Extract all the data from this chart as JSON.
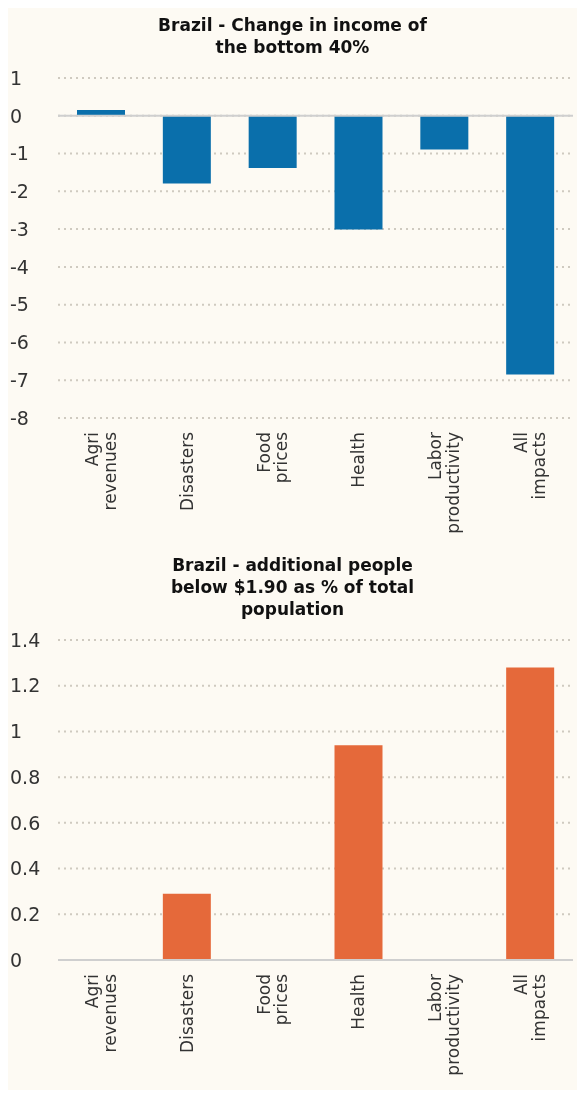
{
  "chart_data": [
    {
      "type": "bar",
      "title": "Brazil - Change in income of the bottom 40%",
      "categories": [
        "Agri revenues",
        "Disasters",
        "Food prices",
        "Health",
        "Labor productivity",
        "All impacts"
      ],
      "values": [
        0.15,
        -1.79,
        -1.38,
        -3.01,
        -0.89,
        -6.85
      ],
      "color": "#0a6fab",
      "ylim": [
        -8,
        1
      ],
      "yticks": [
        -8,
        -7,
        -6,
        -5,
        -4,
        -3,
        -2,
        -1,
        0,
        1
      ],
      "grid": "y"
    },
    {
      "type": "bar",
      "title": "Brazil - additional people below $1.90 as % of total population",
      "categories": [
        "Agri revenues",
        "Disasters",
        "Food prices",
        "Health",
        "Labor productivity",
        "All impacts"
      ],
      "values": [
        0,
        0.29,
        0,
        0.94,
        0,
        1.28
      ],
      "color": "#e5693a",
      "ylim": [
        0,
        1.4
      ],
      "yticks": [
        0,
        0.2,
        0.4,
        0.6,
        0.8,
        1,
        1.2,
        1.4
      ],
      "grid": "y"
    }
  ]
}
